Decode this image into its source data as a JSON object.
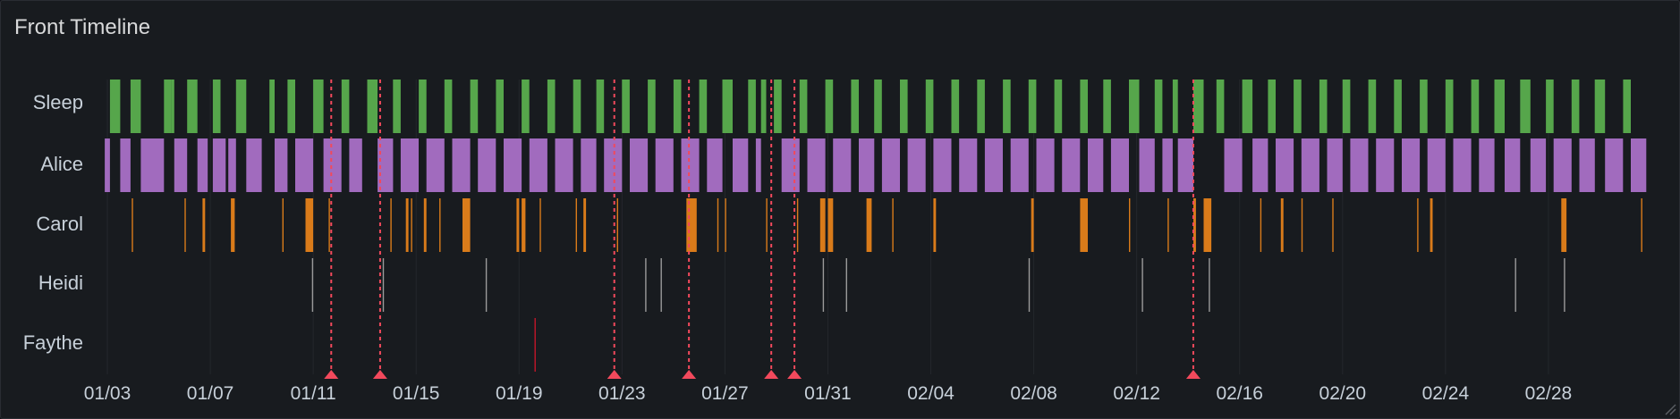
{
  "panel": {
    "title": "Front Timeline"
  },
  "chart_data": {
    "type": "timeline",
    "title": "Front Timeline",
    "rows": [
      "Sleep",
      "Alice",
      "Carol",
      "Heidi",
      "Faythe"
    ],
    "x_ticks": [
      "01/03",
      "01/07",
      "01/11",
      "01/15",
      "01/19",
      "01/23",
      "01/27",
      "01/31",
      "02/04",
      "02/08",
      "02/12",
      "02/16",
      "02/20",
      "02/24",
      "02/28"
    ],
    "x_range_days": [
      0,
      60
    ],
    "x_start_label": "01/03",
    "colors": {
      "Sleep": "#56a64b",
      "Alice": "#a16bbe",
      "Carol": "#d97b1a",
      "Heidi": "#9a9a9a",
      "Faythe": "#c4162a",
      "annotation": "#f2495c"
    },
    "annotations_days": [
      8.7,
      10.6,
      19.7,
      22.6,
      25.8,
      26.7,
      42.2
    ],
    "segments": {
      "Sleep": [
        [
          0.1,
          0.5
        ],
        [
          0.9,
          1.3
        ],
        [
          2.2,
          2.5
        ],
        [
          2.5,
          2.6
        ],
        [
          3.1,
          3.5
        ],
        [
          4.1,
          4.4
        ],
        [
          5.0,
          5.4
        ],
        [
          6.3,
          6.5
        ],
        [
          7.0,
          7.3
        ],
        [
          8.0,
          8.4
        ],
        [
          9.1,
          9.4
        ],
        [
          10.1,
          10.5
        ],
        [
          11.1,
          11.4
        ],
        [
          12.1,
          12.4
        ],
        [
          13.1,
          13.4
        ],
        [
          14.1,
          14.4
        ],
        [
          15.1,
          15.4
        ],
        [
          16.1,
          16.4
        ],
        [
          17.1,
          17.4
        ],
        [
          18.1,
          18.4
        ],
        [
          19.0,
          19.3
        ],
        [
          20.0,
          20.3
        ],
        [
          21.0,
          21.3
        ],
        [
          22.0,
          22.3
        ],
        [
          23.0,
          23.3
        ],
        [
          23.9,
          24.3
        ],
        [
          24.9,
          25.2
        ],
        [
          25.4,
          25.6
        ],
        [
          25.9,
          26.2
        ],
        [
          26.9,
          27.2
        ],
        [
          27.9,
          28.2
        ],
        [
          28.9,
          29.2
        ],
        [
          29.8,
          30.1
        ],
        [
          30.8,
          31.1
        ],
        [
          31.8,
          32.1
        ],
        [
          32.8,
          33.1
        ],
        [
          33.8,
          34.1
        ],
        [
          34.8,
          35.1
        ],
        [
          35.8,
          36.1
        ],
        [
          36.8,
          37.1
        ],
        [
          37.8,
          38.1
        ],
        [
          38.7,
          39.0
        ],
        [
          39.7,
          40.1
        ],
        [
          40.7,
          41.0
        ],
        [
          41.4,
          41.6
        ],
        [
          42.2,
          42.6
        ],
        [
          43.1,
          43.4
        ],
        [
          44.1,
          44.5
        ],
        [
          45.1,
          45.4
        ],
        [
          46.1,
          46.4
        ],
        [
          47.1,
          47.4
        ],
        [
          48.0,
          48.3
        ],
        [
          49.0,
          49.3
        ],
        [
          50.0,
          50.3
        ],
        [
          51.0,
          51.3
        ],
        [
          52.0,
          52.3
        ],
        [
          53.0,
          53.3
        ],
        [
          53.9,
          54.3
        ],
        [
          54.9,
          55.3
        ],
        [
          55.9,
          56.2
        ],
        [
          56.9,
          57.2
        ],
        [
          57.8,
          58.2
        ],
        [
          58.9,
          59.2
        ]
      ],
      "Alice": [
        [
          -0.1,
          0.1
        ],
        [
          0.5,
          0.9
        ],
        [
          1.3,
          2.2
        ],
        [
          2.6,
          3.1
        ],
        [
          3.5,
          3.9
        ],
        [
          4.1,
          4.6
        ],
        [
          4.7,
          5.0
        ],
        [
          5.4,
          6.0
        ],
        [
          6.5,
          7.0
        ],
        [
          7.3,
          8.0
        ],
        [
          8.4,
          9.1
        ],
        [
          9.4,
          9.9
        ],
        [
          10.5,
          11.1
        ],
        [
          11.4,
          12.1
        ],
        [
          12.4,
          13.1
        ],
        [
          13.4,
          14.1
        ],
        [
          14.4,
          15.1
        ],
        [
          15.4,
          16.1
        ],
        [
          16.4,
          17.1
        ],
        [
          17.4,
          18.1
        ],
        [
          18.4,
          19.0
        ],
        [
          19.3,
          20.0
        ],
        [
          20.3,
          21.0
        ],
        [
          21.3,
          22.0
        ],
        [
          22.3,
          23.0
        ],
        [
          23.3,
          23.9
        ],
        [
          24.3,
          24.9
        ],
        [
          25.2,
          25.4
        ],
        [
          26.2,
          26.9
        ],
        [
          27.2,
          27.9
        ],
        [
          28.2,
          28.9
        ],
        [
          29.2,
          29.8
        ],
        [
          30.1,
          30.8
        ],
        [
          31.1,
          31.8
        ],
        [
          32.1,
          32.8
        ],
        [
          33.1,
          33.8
        ],
        [
          34.1,
          34.8
        ],
        [
          35.1,
          35.8
        ],
        [
          36.1,
          36.8
        ],
        [
          37.1,
          37.8
        ],
        [
          38.1,
          38.7
        ],
        [
          39.0,
          39.7
        ],
        [
          40.1,
          40.7
        ],
        [
          41.0,
          41.4
        ],
        [
          41.6,
          42.2
        ],
        [
          43.4,
          44.1
        ],
        [
          44.5,
          45.1
        ],
        [
          45.4,
          46.1
        ],
        [
          46.4,
          47.1
        ],
        [
          47.4,
          48.0
        ],
        [
          48.3,
          49.0
        ],
        [
          49.3,
          50.0
        ],
        [
          50.3,
          51.0
        ],
        [
          51.3,
          52.0
        ],
        [
          52.3,
          53.0
        ],
        [
          53.3,
          53.9
        ],
        [
          54.3,
          54.9
        ],
        [
          55.3,
          55.9
        ],
        [
          56.2,
          56.9
        ],
        [
          57.2,
          57.8
        ],
        [
          58.2,
          58.9
        ],
        [
          59.2,
          59.8
        ]
      ],
      "Carol": [
        [
          0.95,
          1.0
        ],
        [
          3.0,
          3.05
        ],
        [
          3.7,
          3.8
        ],
        [
          4.8,
          4.95
        ],
        [
          6.8,
          6.85
        ],
        [
          7.7,
          8.0
        ],
        [
          8.6,
          8.65
        ],
        [
          11.0,
          11.05
        ],
        [
          11.6,
          11.7
        ],
        [
          11.8,
          11.85
        ],
        [
          12.3,
          12.4
        ],
        [
          12.9,
          12.95
        ],
        [
          13.8,
          14.1
        ],
        [
          15.9,
          16.0
        ],
        [
          16.1,
          16.25
        ],
        [
          16.8,
          16.85
        ],
        [
          18.2,
          18.25
        ],
        [
          18.5,
          18.6
        ],
        [
          19.8,
          19.85
        ],
        [
          22.5,
          22.9
        ],
        [
          23.7,
          23.75
        ],
        [
          24.0,
          24.05
        ],
        [
          25.6,
          25.65
        ],
        [
          26.8,
          26.85
        ],
        [
          27.7,
          27.9
        ],
        [
          28.0,
          28.2
        ],
        [
          29.5,
          29.7
        ],
        [
          30.5,
          30.55
        ],
        [
          32.1,
          32.2
        ],
        [
          35.9,
          36.0
        ],
        [
          37.8,
          38.1
        ],
        [
          39.7,
          39.75
        ],
        [
          41.2,
          41.25
        ],
        [
          42.2,
          42.3
        ],
        [
          42.6,
          42.9
        ],
        [
          44.8,
          44.85
        ],
        [
          45.6,
          45.7
        ],
        [
          46.4,
          46.45
        ],
        [
          47.6,
          47.65
        ],
        [
          50.9,
          50.95
        ],
        [
          51.4,
          51.5
        ],
        [
          56.5,
          56.7
        ],
        [
          59.6,
          59.65
        ]
      ],
      "Heidi": [
        [
          7.95,
          8.0
        ],
        [
          10.7,
          10.75
        ],
        [
          14.7,
          14.75
        ],
        [
          20.9,
          20.95
        ],
        [
          21.5,
          21.55
        ],
        [
          27.8,
          27.85
        ],
        [
          28.7,
          28.75
        ],
        [
          35.8,
          35.85
        ],
        [
          40.2,
          40.25
        ],
        [
          42.8,
          42.85
        ],
        [
          54.7,
          54.75
        ],
        [
          56.6,
          56.65
        ]
      ],
      "Faythe": [
        [
          16.6,
          16.65
        ]
      ]
    }
  }
}
